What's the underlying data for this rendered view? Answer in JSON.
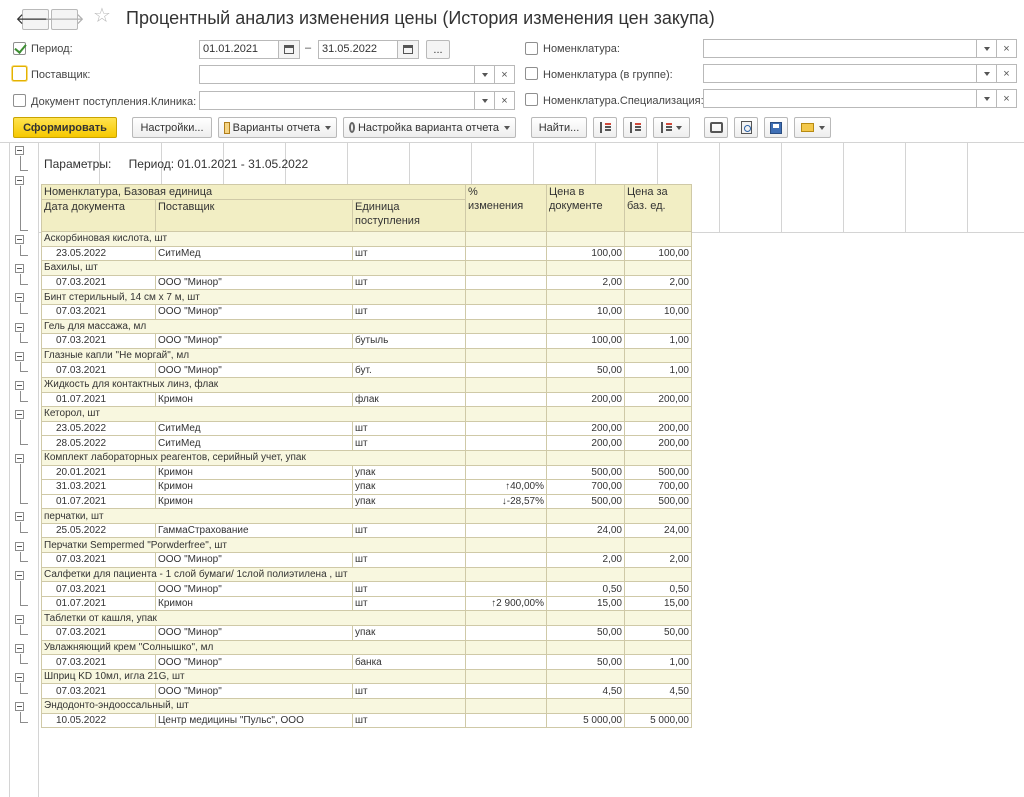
{
  "window": {
    "title": "Процентный анализ изменения цены (История изменения цен закупа)",
    "back_icon": "arrow-left",
    "forward_icon": "arrow-right",
    "favorite_icon": "star"
  },
  "filters": {
    "period": {
      "label": "Период:",
      "checked": true,
      "from": "01.01.2021",
      "dash": "–",
      "to": "31.05.2022",
      "more_label": "..."
    },
    "supplier": {
      "label": "Поставщик:",
      "checked": false,
      "value": ""
    },
    "document_clinic": {
      "label": "Документ поступления.Клиника:",
      "checked": false,
      "value": ""
    },
    "nomenclature": {
      "label": "Номенклатура:",
      "checked": false,
      "value": ""
    },
    "nomenclature_group": {
      "label": "Номенклатура (в группе):",
      "checked": false,
      "value": ""
    },
    "nomenclature_spec": {
      "label": "Номенклатура.Специализация:",
      "checked": false,
      "value": ""
    }
  },
  "toolbar": {
    "generate": "Сформировать",
    "settings": "Настройки...",
    "variants": "Варианты отчета",
    "variant_settings": "Настройка варианта отчета",
    "find": "Найти...",
    "icons": [
      "sort-desc-icon",
      "sort-asc-icon",
      "group-icon",
      "print-icon",
      "preview-icon",
      "save-icon",
      "mail-icon"
    ]
  },
  "report": {
    "params_label": "Параметры:",
    "params_value": "Период: 01.01.2021 - 31.05.2022",
    "headers": {
      "group": "Номенклатура, Базовая единица",
      "date": "Дата документа",
      "supplier": "Поставщик",
      "unit_line1": "Единица",
      "unit_line2": "поступления",
      "pct_line1": "%",
      "pct_line2": "изменения",
      "price_doc_line1": "Цена в",
      "price_doc_line2": "документе",
      "price_base_line1": "Цена за",
      "price_base_line2": "баз. ед."
    },
    "rows": [
      {
        "type": "group",
        "name": "Аскорбиновая кислота, шт"
      },
      {
        "type": "detail",
        "date": "23.05.2022",
        "supplier": "СитиМед",
        "unit": "шт",
        "pct": "",
        "dir": "",
        "price_doc": "100,00",
        "price_base": "100,00"
      },
      {
        "type": "group",
        "name": "Бахилы, шт"
      },
      {
        "type": "detail",
        "date": "07.03.2021",
        "supplier": "ООО \"Минор\"",
        "unit": "шт",
        "pct": "",
        "dir": "",
        "price_doc": "2,00",
        "price_base": "2,00"
      },
      {
        "type": "group",
        "name": "Бинт стерильный, 14 см х 7 м, шт"
      },
      {
        "type": "detail",
        "date": "07.03.2021",
        "supplier": "ООО \"Минор\"",
        "unit": "шт",
        "pct": "",
        "dir": "",
        "price_doc": "10,00",
        "price_base": "10,00"
      },
      {
        "type": "group",
        "name": "Гель для массажа, мл"
      },
      {
        "type": "detail",
        "date": "07.03.2021",
        "supplier": "ООО \"Минор\"",
        "unit": "бутыль",
        "pct": "",
        "dir": "",
        "price_doc": "100,00",
        "price_base": "1,00"
      },
      {
        "type": "group",
        "name": "Глазные капли \"Не моргай\", мл"
      },
      {
        "type": "detail",
        "date": "07.03.2021",
        "supplier": "ООО \"Минор\"",
        "unit": "бут.",
        "pct": "",
        "dir": "",
        "price_doc": "50,00",
        "price_base": "1,00"
      },
      {
        "type": "group",
        "name": "Жидкость для контактных линз, флак"
      },
      {
        "type": "detail",
        "date": "01.07.2021",
        "supplier": "Кримон",
        "unit": "флак",
        "pct": "",
        "dir": "",
        "price_doc": "200,00",
        "price_base": "200,00"
      },
      {
        "type": "group",
        "name": "Кеторол, шт"
      },
      {
        "type": "detail",
        "date": "23.05.2022",
        "supplier": "СитиМед",
        "unit": "шт",
        "pct": "",
        "dir": "",
        "price_doc": "200,00",
        "price_base": "200,00"
      },
      {
        "type": "detail",
        "date": "28.05.2022",
        "supplier": "СитиМед",
        "unit": "шт",
        "pct": "",
        "dir": "",
        "price_doc": "200,00",
        "price_base": "200,00"
      },
      {
        "type": "group",
        "name": "Комплект лабораторных реагентов, серийный учет, упак"
      },
      {
        "type": "detail",
        "date": "20.01.2021",
        "supplier": "Кримон",
        "unit": "упак",
        "pct": "",
        "dir": "",
        "price_doc": "500,00",
        "price_base": "500,00"
      },
      {
        "type": "detail",
        "date": "31.03.2021",
        "supplier": "Кримон",
        "unit": "упак",
        "pct": "↑40,00%",
        "dir": "up",
        "price_doc": "700,00",
        "price_base": "700,00"
      },
      {
        "type": "detail",
        "date": "01.07.2021",
        "supplier": "Кримон",
        "unit": "упак",
        "pct": "↓-28,57%",
        "dir": "down",
        "price_doc": "500,00",
        "price_base": "500,00"
      },
      {
        "type": "group",
        "name": "перчатки, шт"
      },
      {
        "type": "detail",
        "date": "25.05.2022",
        "supplier": "ГаммаСтрахование",
        "unit": "шт",
        "pct": "",
        "dir": "",
        "price_doc": "24,00",
        "price_base": "24,00"
      },
      {
        "type": "group",
        "name": "Перчатки Sempermed \"Porwderfree\", шт"
      },
      {
        "type": "detail",
        "date": "07.03.2021",
        "supplier": "ООО \"Минор\"",
        "unit": "шт",
        "pct": "",
        "dir": "",
        "price_doc": "2,00",
        "price_base": "2,00"
      },
      {
        "type": "group",
        "name": "Салфетки для пациента - 1 слой бумаги/ 1слой полиэтилена , шт"
      },
      {
        "type": "detail",
        "date": "07.03.2021",
        "supplier": "ООО \"Минор\"",
        "unit": "шт",
        "pct": "",
        "dir": "",
        "price_doc": "0,50",
        "price_base": "0,50"
      },
      {
        "type": "detail",
        "date": "01.07.2021",
        "supplier": "Кримон",
        "unit": "шт",
        "pct": "↑2 900,00%",
        "dir": "up",
        "price_doc": "15,00",
        "price_base": "15,00"
      },
      {
        "type": "group",
        "name": "Таблетки от кашля, упак"
      },
      {
        "type": "detail",
        "date": "07.03.2021",
        "supplier": "ООО \"Минор\"",
        "unit": "упак",
        "pct": "",
        "dir": "",
        "price_doc": "50,00",
        "price_base": "50,00"
      },
      {
        "type": "group",
        "name": "Увлажняющий крем \"Солнышко\", мл"
      },
      {
        "type": "detail",
        "date": "07.03.2021",
        "supplier": "ООО \"Минор\"",
        "unit": "банка",
        "pct": "",
        "dir": "",
        "price_doc": "50,00",
        "price_base": "1,00"
      },
      {
        "type": "group",
        "name": "Шприц KD 10мл, игла 21G, шт"
      },
      {
        "type": "detail",
        "date": "07.03.2021",
        "supplier": "ООО \"Минор\"",
        "unit": "шт",
        "pct": "",
        "dir": "",
        "price_doc": "4,50",
        "price_base": "4,50"
      },
      {
        "type": "group",
        "name": "Эндодонто-эндооссальный, шт"
      },
      {
        "type": "detail",
        "date": "10.05.2022",
        "supplier": "Центр медицины \"Пульс\", ООО",
        "unit": "шт",
        "pct": "",
        "dir": "",
        "price_doc": "5 000,00",
        "price_base": "5 000,00"
      }
    ]
  },
  "colors": {
    "accent_yellow": "#f6c800",
    "header_bg": "#f2eec4",
    "group_bg": "#f8f7df",
    "up": "#e02020",
    "down": "#2f9a2f"
  }
}
